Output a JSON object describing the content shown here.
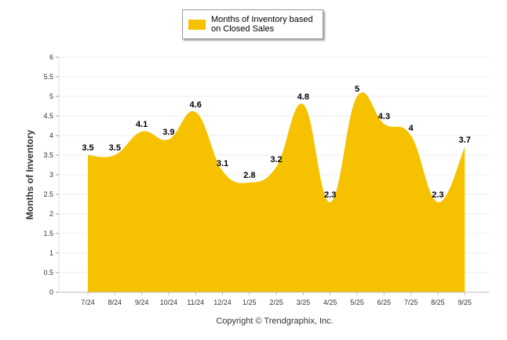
{
  "legend": {
    "label": "Months of Inventory based on Closed Sales",
    "color": "#f6c200"
  },
  "copyright": "Copyright © Trendgraphix, Inc.",
  "chart_data": {
    "type": "area",
    "title": "",
    "xlabel": "",
    "ylabel": "Months of Inventory",
    "ylim": [
      0,
      6
    ],
    "ytick_step": 0.5,
    "categories": [
      "7/24",
      "8/24",
      "9/24",
      "10/24",
      "11/24",
      "12/24",
      "1/25",
      "2/25",
      "3/25",
      "4/25",
      "5/25",
      "6/25",
      "7/25",
      "8/25",
      "9/25"
    ],
    "series": [
      {
        "name": "Months of Inventory based on Closed Sales",
        "color": "#f6c200",
        "values": [
          3.5,
          3.5,
          4.1,
          3.9,
          4.6,
          3.1,
          2.8,
          3.2,
          4.8,
          2.3,
          5,
          4.3,
          4,
          2.3,
          3.7
        ]
      }
    ]
  }
}
